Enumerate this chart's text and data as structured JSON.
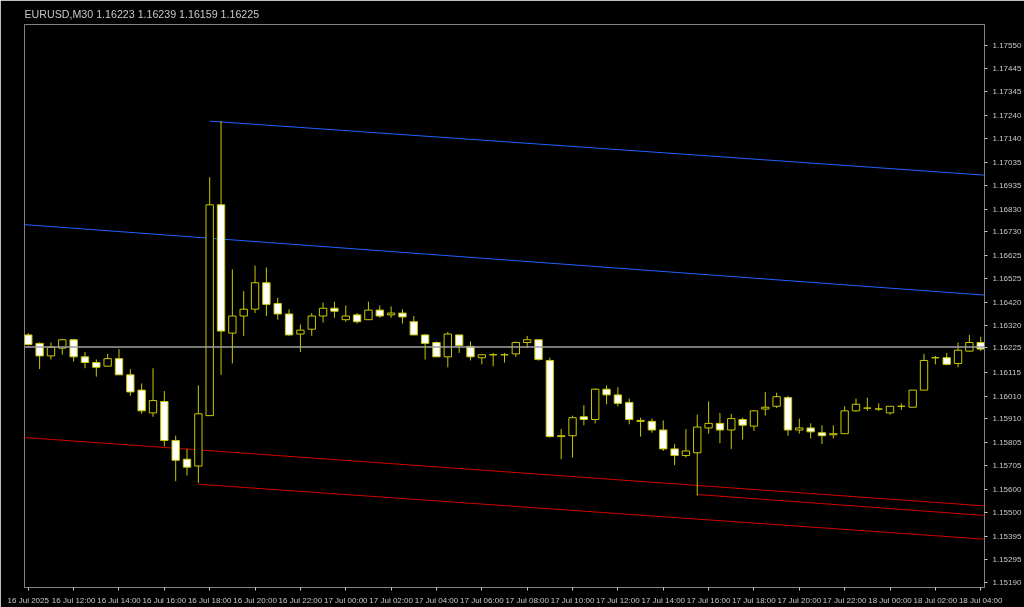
{
  "chart_data": {
    "type": "candlestick",
    "title": "EURUSD,M30  1.16223 1.16239 1.16159 1.16225",
    "color": "#c8c800",
    "x": [
      "2025-07-16T10:00",
      "2025-07-16T10:30",
      "2025-07-16T11:00",
      "2025-07-16T11:30",
      "2025-07-16T12:00",
      "2025-07-16T12:30",
      "2025-07-16T13:00",
      "2025-07-16T13:30",
      "2025-07-16T14:00",
      "2025-07-16T14:30",
      "2025-07-16T15:00",
      "2025-07-16T15:30",
      "2025-07-16T16:00",
      "2025-07-16T16:30",
      "2025-07-16T17:00",
      "2025-07-16T17:30",
      "2025-07-16T18:00",
      "2025-07-16T18:30",
      "2025-07-16T19:00",
      "2025-07-16T19:30",
      "2025-07-16T20:00",
      "2025-07-16T20:30",
      "2025-07-16T21:00",
      "2025-07-16T21:30",
      "2025-07-16T22:00",
      "2025-07-16T22:30",
      "2025-07-16T23:00",
      "2025-07-16T23:30",
      "2025-07-17T00:00",
      "2025-07-17T00:30",
      "2025-07-17T01:00",
      "2025-07-17T01:30",
      "2025-07-17T02:00",
      "2025-07-17T02:30",
      "2025-07-17T03:00",
      "2025-07-17T03:30",
      "2025-07-17T04:00",
      "2025-07-17T04:30",
      "2025-07-17T05:00",
      "2025-07-17T05:30",
      "2025-07-17T06:00",
      "2025-07-17T06:30",
      "2025-07-17T07:00",
      "2025-07-17T07:30",
      "2025-07-17T08:00",
      "2025-07-17T08:30",
      "2025-07-17T09:00",
      "2025-07-17T09:30",
      "2025-07-17T10:00",
      "2025-07-17T10:30",
      "2025-07-17T11:00",
      "2025-07-17T11:30",
      "2025-07-17T12:00",
      "2025-07-17T12:30",
      "2025-07-17T13:00",
      "2025-07-17T13:30",
      "2025-07-17T14:00",
      "2025-07-17T14:30",
      "2025-07-17T15:00",
      "2025-07-17T15:30",
      "2025-07-17T16:00",
      "2025-07-17T16:30",
      "2025-07-17T17:00",
      "2025-07-17T17:30",
      "2025-07-17T18:00",
      "2025-07-17T18:30",
      "2025-07-17T19:00",
      "2025-07-17T19:30",
      "2025-07-17T20:00",
      "2025-07-17T20:30",
      "2025-07-17T21:00",
      "2025-07-17T21:30",
      "2025-07-17T22:00",
      "2025-07-17T22:30",
      "2025-07-17T23:00",
      "2025-07-17T23:30",
      "2025-07-18T00:00",
      "2025-07-18T00:30",
      "2025-07-18T01:00",
      "2025-07-18T01:30",
      "2025-07-18T02:00",
      "2025-07-18T02:30",
      "2025-07-18T03:00",
      "2025-07-18T03:30",
      "2025-07-18T04:00"
    ],
    "ohlc": [
      [
        1.16278,
        1.16286,
        1.16232,
        1.16236
      ],
      [
        1.16241,
        1.16245,
        1.16128,
        1.16186
      ],
      [
        1.16186,
        1.16245,
        1.1617,
        1.16224
      ],
      [
        1.1622,
        1.16261,
        1.16191,
        1.16257
      ],
      [
        1.16257,
        1.16261,
        1.16161,
        1.16182
      ],
      [
        1.16182,
        1.16203,
        1.16132,
        1.16157
      ],
      [
        1.16157,
        1.1617,
        1.16095,
        1.16136
      ],
      [
        1.16141,
        1.16195,
        1.16141,
        1.16174
      ],
      [
        1.16174,
        1.16216,
        1.16103,
        1.16103
      ],
      [
        1.16103,
        1.16128,
        1.16011,
        1.16028
      ],
      [
        1.16036,
        1.16065,
        1.15932,
        1.15945
      ],
      [
        1.15936,
        1.16132,
        1.15919,
        1.1599
      ],
      [
        1.15986,
        1.16032,
        1.1579,
        1.15815
      ],
      [
        1.15815,
        1.15836,
        1.15636,
        1.15728
      ],
      [
        1.15733,
        1.15778,
        1.15661,
        1.15698
      ],
      [
        1.15703,
        1.16057,
        1.15628,
        1.15932
      ],
      [
        1.15924,
        1.1697,
        1.15924,
        1.16849
      ],
      [
        1.16849,
        1.17216,
        1.16103,
        1.16295
      ],
      [
        1.16286,
        1.16566,
        1.16153,
        1.16361
      ],
      [
        1.16361,
        1.1647,
        1.16274,
        1.16391
      ],
      [
        1.16391,
        1.16582,
        1.16374,
        1.16507
      ],
      [
        1.16507,
        1.16574,
        1.16361,
        1.16412
      ],
      [
        1.16416,
        1.16441,
        1.16345,
        1.1637
      ],
      [
        1.1637,
        1.16391,
        1.16274,
        1.16278
      ],
      [
        1.16282,
        1.16324,
        1.16203,
        1.16299
      ],
      [
        1.16303,
        1.16374,
        1.16274,
        1.16361
      ],
      [
        1.16361,
        1.1642,
        1.16332,
        1.16395
      ],
      [
        1.16395,
        1.16424,
        1.16353,
        1.16382
      ],
      [
        1.16345,
        1.16407,
        1.16336,
        1.16361
      ],
      [
        1.16366,
        1.16374,
        1.16328,
        1.16336
      ],
      [
        1.16345,
        1.16424,
        1.16345,
        1.16387
      ],
      [
        1.16387,
        1.16407,
        1.16353,
        1.16361
      ],
      [
        1.16366,
        1.16403,
        1.16353,
        1.16374
      ],
      [
        1.16374,
        1.16391,
        1.16328,
        1.16357
      ],
      [
        1.16336,
        1.16361,
        1.16278,
        1.16278
      ],
      [
        1.16278,
        1.16282,
        1.1617,
        1.16241
      ],
      [
        1.16245,
        1.16249,
        1.16182,
        1.16182
      ],
      [
        1.16182,
        1.16291,
        1.16136,
        1.16282
      ],
      [
        1.16278,
        1.16278,
        1.16199,
        1.16232
      ],
      [
        1.16228,
        1.16249,
        1.16166,
        1.16182
      ],
      [
        1.16178,
        1.16195,
        1.16149,
        1.16191
      ],
      [
        1.16191,
        1.16199,
        1.16141,
        1.16191
      ],
      [
        1.16191,
        1.16199,
        1.16157,
        1.16191
      ],
      [
        1.16195,
        1.16249,
        1.16182,
        1.16245
      ],
      [
        1.16245,
        1.16274,
        1.1622,
        1.16257
      ],
      [
        1.16257,
        1.16257,
        1.16166,
        1.1617
      ],
      [
        1.16166,
        1.16178,
        1.15828,
        1.15832
      ],
      [
        1.15832,
        1.15865,
        1.15733,
        1.15836
      ],
      [
        1.15836,
        1.15924,
        1.1574,
        1.15915
      ],
      [
        1.15919,
        1.1597,
        1.15882,
        1.15907
      ],
      [
        1.15907,
        1.16044,
        1.1589,
        1.1604
      ],
      [
        1.1604,
        1.16057,
        1.15974,
        1.16015
      ],
      [
        1.16015,
        1.16049,
        1.15965,
        1.15978
      ],
      [
        1.15982,
        1.15999,
        1.15886,
        1.15907
      ],
      [
        1.15903,
        1.15915,
        1.15832,
        1.15899
      ],
      [
        1.15899,
        1.15911,
        1.15849,
        1.15861
      ],
      [
        1.15861,
        1.15903,
        1.15769,
        1.15778
      ],
      [
        1.15778,
        1.15799,
        1.15707,
        1.15749
      ],
      [
        1.15749,
        1.15865,
        1.1574,
        1.15769
      ],
      [
        1.15761,
        1.15928,
        1.15573,
        1.15874
      ],
      [
        1.1587,
        1.15986,
        1.15845,
        1.1589
      ],
      [
        1.1589,
        1.15936,
        1.15803,
        1.15861
      ],
      [
        1.15861,
        1.15932,
        1.15778,
        1.15911
      ],
      [
        1.15907,
        1.15915,
        1.15819,
        1.15882
      ],
      [
        1.15878,
        1.15949,
        1.15857,
        1.15945
      ],
      [
        1.15953,
        1.16028,
        1.15924,
        1.15961
      ],
      [
        1.15965,
        1.16024,
        1.15957,
        1.16007
      ],
      [
        1.16003,
        1.16011,
        1.15836,
        1.15861
      ],
      [
        1.15861,
        1.15911,
        1.15845,
        1.1587
      ],
      [
        1.1587,
        1.1589,
        1.15824,
        1.15853
      ],
      [
        1.15849,
        1.15882,
        1.15799,
        1.15836
      ],
      [
        1.1584,
        1.15882,
        1.15824,
        1.15845
      ],
      [
        1.15845,
        1.15965,
        1.15845,
        1.15945
      ],
      [
        1.15945,
        1.15999,
        1.15941,
        1.15974
      ],
      [
        1.15957,
        1.16003,
        1.15945,
        1.15957
      ],
      [
        1.15953,
        1.15978,
        1.15945,
        1.15953
      ],
      [
        1.15936,
        1.15965,
        1.15928,
        1.15965
      ],
      [
        1.15965,
        1.15978,
        1.15949,
        1.15965
      ],
      [
        1.15961,
        1.16036,
        1.15961,
        1.16036
      ],
      [
        1.16036,
        1.16195,
        1.16036,
        1.16166
      ],
      [
        1.16178,
        1.16186,
        1.16149,
        1.16178
      ],
      [
        1.16178,
        1.16199,
        1.16145,
        1.16149
      ],
      [
        1.16153,
        1.16245,
        1.16136,
        1.16211
      ],
      [
        1.16207,
        1.16278,
        1.16203,
        1.16245
      ],
      [
        1.16245,
        1.1627,
        1.16207,
        1.16216
      ]
    ],
    "series": [
      {
        "type": "line",
        "color": "#2060ff",
        "x": [
          "2025-07-16T18:00",
          "2025-07-18T04:10"
        ],
        "values": [
          1.17216,
          1.16979
        ]
      },
      {
        "type": "line",
        "color": "#2060ff",
        "x": [
          "2025-07-16T09:50",
          "2025-07-18T04:10"
        ],
        "values": [
          1.16762,
          1.16453
        ]
      },
      {
        "type": "line",
        "color": "#d00000",
        "x": [
          "2025-07-16T09:50",
          "2025-07-18T04:10"
        ],
        "values": [
          1.15828,
          1.15528
        ]
      },
      {
        "type": "line",
        "color": "#d00000",
        "x": [
          "2025-07-16T17:30",
          "2025-07-18T04:10"
        ],
        "values": [
          1.15623,
          1.15382
        ]
      },
      {
        "type": "line",
        "color": "#d00000",
        "x": [
          "2025-07-17T15:30",
          "2025-07-18T04:10"
        ],
        "values": [
          1.15578,
          1.15486
        ]
      }
    ],
    "ref_lines": [
      {
        "axis": "y",
        "value": 1.16225,
        "label": "1.16225",
        "color": "#a0a0a0"
      }
    ],
    "xlim": [
      "2025-07-16T09:50",
      "2025-07-18T04:10"
    ],
    "ylim": [
      1.1517,
      1.1764
    ],
    "xticks": [
      {
        "value": "2025-07-16T10:00",
        "label": "16 Jul 2025"
      },
      {
        "value": "2025-07-16T12:00",
        "label": "16 Jul 12:00"
      },
      {
        "value": "2025-07-16T14:00",
        "label": "16 Jul 14:00"
      },
      {
        "value": "2025-07-16T16:00",
        "label": "16 Jul 16:00"
      },
      {
        "value": "2025-07-16T18:00",
        "label": "16 Jul 18:00"
      },
      {
        "value": "2025-07-16T20:00",
        "label": "16 Jul 20:00"
      },
      {
        "value": "2025-07-16T22:00",
        "label": "16 Jul 22:00"
      },
      {
        "value": "2025-07-17T00:00",
        "label": "17 Jul 00:00"
      },
      {
        "value": "2025-07-17T02:00",
        "label": "17 Jul 02:00"
      },
      {
        "value": "2025-07-17T04:00",
        "label": "17 Jul 04:00"
      },
      {
        "value": "2025-07-17T06:00",
        "label": "17 Jul 06:00"
      },
      {
        "value": "2025-07-17T08:00",
        "label": "17 Jul 08:00"
      },
      {
        "value": "2025-07-17T10:00",
        "label": "17 Jul 10:00"
      },
      {
        "value": "2025-07-17T12:00",
        "label": "17 Jul 12:00"
      },
      {
        "value": "2025-07-17T14:00",
        "label": "17 Jul 14:00"
      },
      {
        "value": "2025-07-17T16:00",
        "label": "17 Jul 16:00"
      },
      {
        "value": "2025-07-17T18:00",
        "label": "17 Jul 18:00"
      },
      {
        "value": "2025-07-17T20:00",
        "label": "17 Jul 20:00"
      },
      {
        "value": "2025-07-17T22:00",
        "label": "17 Jul 22:00"
      },
      {
        "value": "2025-07-18T00:00",
        "label": "18 Jul 00:00"
      },
      {
        "value": "2025-07-18T02:00",
        "label": "18 Jul 02:00"
      },
      {
        "value": "2025-07-18T04:00",
        "label": "18 Jul 04:00"
      }
    ],
    "yticks": [
      {
        "value": 1.1755,
        "label": "1.17550"
      },
      1.17445,
      1.17345,
      {
        "value": 1.1724,
        "label": "1.17240"
      },
      {
        "value": 1.1714,
        "label": "1.17140"
      },
      1.17035,
      1.16935,
      {
        "value": 1.1683,
        "label": "1.16830"
      },
      {
        "value": 1.1673,
        "label": "1.16730"
      },
      1.16625,
      1.16525,
      {
        "value": 1.1642,
        "label": "1.16420"
      },
      {
        "value": 1.1632,
        "label": "1.16320"
      },
      1.16115,
      {
        "value": 1.1601,
        "label": "1.16010"
      },
      {
        "value": 1.1591,
        "label": "1.15910"
      },
      1.15805,
      1.15705,
      {
        "value": 1.156,
        "label": "1.15600"
      },
      {
        "value": 1.155,
        "label": "1.15500"
      },
      1.15395,
      1.15295,
      {
        "value": 1.1519,
        "label": "1.15190"
      }
    ]
  }
}
